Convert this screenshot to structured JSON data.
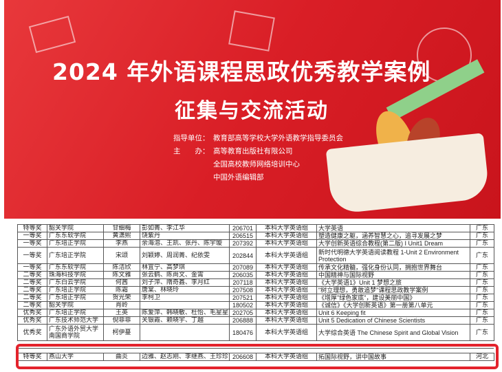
{
  "banner": {
    "title_line1": "2024 年外语课程思政优秀教学案例",
    "title_line2": "征集与交流活动",
    "guide_label": "指导单位：",
    "guide_value": "教育部高等学校大学外语教学指导委员会",
    "host_label": "主　　办：",
    "hosts": [
      "高等教育出版社有限公司",
      "全国高校教师网络培训中心",
      "中国外语编辑部"
    ],
    "color": "#d91e26"
  },
  "table": {
    "rows": [
      [
        "特等奖",
        "韶关学院",
        "甘细梅",
        "彭如菁、李江华",
        "206701",
        "本科大学英语组",
        "大学英语",
        "广东"
      ],
      [
        "一等奖",
        "广东东软学院",
        "黄潇熙",
        "饶紫丹",
        "206515",
        "本科大学英语组",
        "塑造健康之躯，涵养智慧之心，追寻发展之梦",
        "广东"
      ],
      [
        "一等奖",
        "广东培正学院",
        "李燕",
        "余海溶、王凯、张丹、陈宇璇",
        "207392",
        "本科大学英语组",
        "大学创新英语综合教程(第二版) I Unit1 Dream",
        "广东"
      ],
      [
        "一等奖",
        "广东培正学院",
        "宋颂",
        "刘颖婷、周润菁、纪依雯",
        "202844",
        "本科大学英语组",
        "新时代明德大学英语阅读教程 1-Unit 2 Environment Protection",
        "广东"
      ],
      [
        "一等奖",
        "广东东软学院",
        "陈洁欣",
        "林宜宁、高梦琪",
        "207089",
        "本科大学英语组",
        "传承文化精髓，强化身份认同，拥抱世界舞台",
        "广东"
      ],
      [
        "二等奖",
        "珠海科技学院",
        "陈文雅",
        "张云鹤、陈尚文、金霄",
        "206035",
        "本科大学英语组",
        "中国精神与国际视野",
        "广东"
      ],
      [
        "二等奖",
        "广东白云学院",
        "何茜",
        "刘子萍、隋奇鑫、李月红",
        "207118",
        "本科大学英语组",
        "《大学英语1》Unit 1 梦想之旅",
        "广东"
      ],
      [
        "二等奖",
        "广东培正学院",
        "陈霜",
        "唐棠、林晓玲",
        "207508",
        "本科大学英语组",
        "\"树立理想，勇敢追梦\"课程思政教学案例",
        "广东"
      ],
      [
        "二等奖",
        "广东培正学院",
        "贺光荣",
        "李柯卫",
        "207521",
        "本科大学英语组",
        "《增厚\"绿色家底\"，建设美丽中国》",
        "广东"
      ],
      [
        "二等奖",
        "韶关学院",
        "肖岭",
        "",
        "180502",
        "本科大学英语组",
        "《诚信》《大学创新英语》第一册第八单元",
        "广东"
      ],
      [
        "优秀奖",
        "广东培正学院",
        "王英",
        "陈爱萍、韩晓敏、杜怡、毛星星",
        "202705",
        "本科大学英语组",
        "Unit 6 Keeping fit",
        "广东"
      ],
      [
        "优秀奖",
        "广东技术师范大学",
        "倪菲菲",
        "关银霞、赖晓宇、丁越",
        "206888",
        "本科大学英语组",
        "Unit 5 Dedication of Chinese Scientists",
        "广东"
      ],
      [
        "优秀奖",
        "广东外语外贸大学南国商学院",
        "柯伊蔓",
        "",
        "180476",
        "本科大学英语组",
        "大学综合英语 The Chinese Spirit and Global Vision",
        "广东"
      ]
    ],
    "highlighted_row": [
      "特等奖",
      "燕山大学",
      "曲炎",
      "边雅、赵志刚、李继燕、王珍珍",
      "206608",
      "本科大学英语组",
      "拓国际视野，讲中国故事",
      "河北"
    ],
    "highlight_color": "#e3232c"
  }
}
